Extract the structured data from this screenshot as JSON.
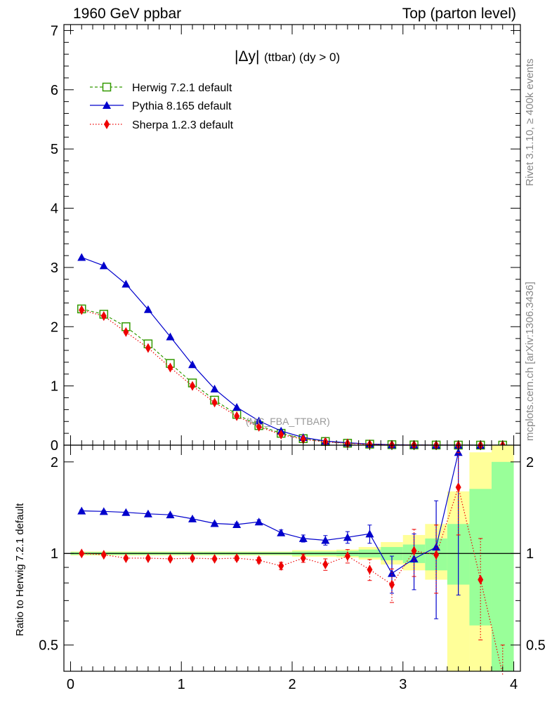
{
  "header": {
    "left": "1960 GeV ppbar",
    "right": "Top (parton level)"
  },
  "side_labels": {
    "rivet": "Rivet 3.1.10, ≥ 400k events",
    "mcplots": "mcplots.cern.ch [arXiv:1306.3436]"
  },
  "colors": {
    "herwig": "#339900",
    "pythia": "#0000cc",
    "sherpa": "#ee0000",
    "band_inner": "#99ff99",
    "band_outer": "#ffff99"
  },
  "chart_data": [
    {
      "type": "line",
      "panel": "main",
      "title_main": "|Δy|",
      "title_sub": "(ttbar) (dy > 0)",
      "analysis_label": "(MC_FBA_TTBAR)",
      "xlabel": "",
      "ylabel": "",
      "xlim": [
        -0.06,
        4.06
      ],
      "ylim": [
        0,
        7.1
      ],
      "yticks": [
        0,
        1,
        2,
        3,
        4,
        5,
        6,
        7
      ],
      "ytick_labels": [
        "0",
        "1",
        "2",
        "3",
        "4",
        "5",
        "6",
        "7"
      ],
      "legend_position": "top-left",
      "x": [
        0.1,
        0.3,
        0.5,
        0.7,
        0.9,
        1.1,
        1.3,
        1.5,
        1.7,
        1.9,
        2.1,
        2.3,
        2.5,
        2.7,
        2.9,
        3.1,
        3.3,
        3.5,
        3.7,
        3.9
      ],
      "series": [
        {
          "name": "Herwig 7.2.1 default",
          "style": "dashed-open-square",
          "values": [
            2.3,
            2.21,
            2.0,
            1.71,
            1.38,
            1.05,
            0.76,
            0.52,
            0.33,
            0.2,
            0.11,
            0.062,
            0.033,
            0.017,
            0.008,
            0.004,
            0.002,
            0.001,
            0.0005,
            0.0002
          ]
        },
        {
          "name": "Pythia 8.165 default",
          "style": "solid-filled-triangle",
          "values": [
            3.17,
            3.03,
            2.72,
            2.29,
            1.83,
            1.36,
            0.95,
            0.64,
            0.41,
            0.24,
            0.13,
            0.07,
            0.04,
            0.02,
            0.007,
            0.004,
            0.002,
            0.002,
            0.0,
            0.0
          ]
        },
        {
          "name": "Sherpa 1.2.3 default",
          "style": "dotted-filled-diamond",
          "values": [
            2.28,
            2.18,
            1.91,
            1.64,
            1.31,
            1.0,
            0.72,
            0.49,
            0.31,
            0.18,
            0.1,
            0.055,
            0.03,
            0.015,
            0.006,
            0.004,
            0.002,
            0.002,
            0.0,
            0.0
          ]
        }
      ]
    },
    {
      "type": "line",
      "panel": "ratio",
      "xlabel": "",
      "ylabel": "Ratio to Herwig 7.2.1 default",
      "xlim": [
        -0.06,
        4.06
      ],
      "ylim": [
        0.41,
        2.27
      ],
      "yscale": "log",
      "xticks": [
        0,
        1,
        2,
        3,
        4
      ],
      "xtick_labels": [
        "0",
        "1",
        "2",
        "3",
        "4"
      ],
      "yticks": [
        0.5,
        1,
        2
      ],
      "ytick_labels": [
        "0.5",
        "1",
        "2"
      ],
      "x": [
        0.1,
        0.3,
        0.5,
        0.7,
        0.9,
        1.1,
        1.3,
        1.5,
        1.7,
        1.9,
        2.1,
        2.3,
        2.5,
        2.7,
        2.9,
        3.1,
        3.3,
        3.5,
        3.7,
        3.9
      ],
      "band_inner": [
        [
          0.99,
          1.01
        ],
        [
          0.99,
          1.01
        ],
        [
          0.99,
          1.01
        ],
        [
          0.99,
          1.01
        ],
        [
          0.99,
          1.01
        ],
        [
          0.99,
          1.01
        ],
        [
          0.99,
          1.01
        ],
        [
          0.99,
          1.01
        ],
        [
          0.99,
          1.01
        ],
        [
          0.99,
          1.01
        ],
        [
          0.985,
          1.015
        ],
        [
          0.985,
          1.015
        ],
        [
          0.98,
          1.02
        ],
        [
          0.97,
          1.03
        ],
        [
          0.95,
          1.05
        ],
        [
          0.93,
          1.07
        ],
        [
          0.88,
          1.12
        ],
        [
          0.79,
          1.25
        ],
        [
          0.58,
          1.63
        ],
        [
          0.38,
          2.0
        ]
      ],
      "band_outer": [
        [
          0.985,
          1.015
        ],
        [
          0.985,
          1.015
        ],
        [
          0.985,
          1.015
        ],
        [
          0.985,
          1.015
        ],
        [
          0.985,
          1.015
        ],
        [
          0.985,
          1.015
        ],
        [
          0.985,
          1.015
        ],
        [
          0.985,
          1.015
        ],
        [
          0.985,
          1.015
        ],
        [
          0.985,
          1.015
        ],
        [
          0.975,
          1.025
        ],
        [
          0.975,
          1.025
        ],
        [
          0.97,
          1.03
        ],
        [
          0.955,
          1.05
        ],
        [
          0.92,
          1.09
        ],
        [
          0.88,
          1.15
        ],
        [
          0.82,
          1.25
        ],
        [
          0.35,
          1.6
        ],
        [
          0.35,
          2.15
        ],
        [
          0.35,
          2.3
        ]
      ],
      "series": [
        {
          "name": "Pythia 8.165 default",
          "values": [
            1.38,
            1.375,
            1.365,
            1.35,
            1.34,
            1.3,
            1.255,
            1.245,
            1.27,
            1.17,
            1.12,
            1.105,
            1.13,
            1.16,
            0.86,
            0.96,
            1.05,
            2.15,
            null,
            null
          ],
          "errors": [
            0.01,
            0.01,
            0.01,
            0.01,
            0.01,
            0.01,
            0.01,
            0.015,
            0.02,
            0.025,
            0.03,
            0.04,
            0.05,
            0.08,
            0.12,
            0.2,
            0.44,
            1.42,
            null,
            null
          ]
        },
        {
          "name": "Sherpa 1.2.3 default",
          "values": [
            1.0,
            0.99,
            0.965,
            0.965,
            0.96,
            0.965,
            0.96,
            0.965,
            0.95,
            0.91,
            0.965,
            0.92,
            0.98,
            0.885,
            0.79,
            1.02,
            0.99,
            1.65,
            0.82,
            0.4
          ],
          "errors": [
            0.01,
            0.01,
            0.01,
            0.01,
            0.01,
            0.01,
            0.01,
            0.015,
            0.02,
            0.025,
            0.03,
            0.04,
            0.05,
            0.07,
            0.1,
            0.18,
            0.25,
            0.5,
            0.3,
            0.1
          ]
        }
      ]
    }
  ]
}
